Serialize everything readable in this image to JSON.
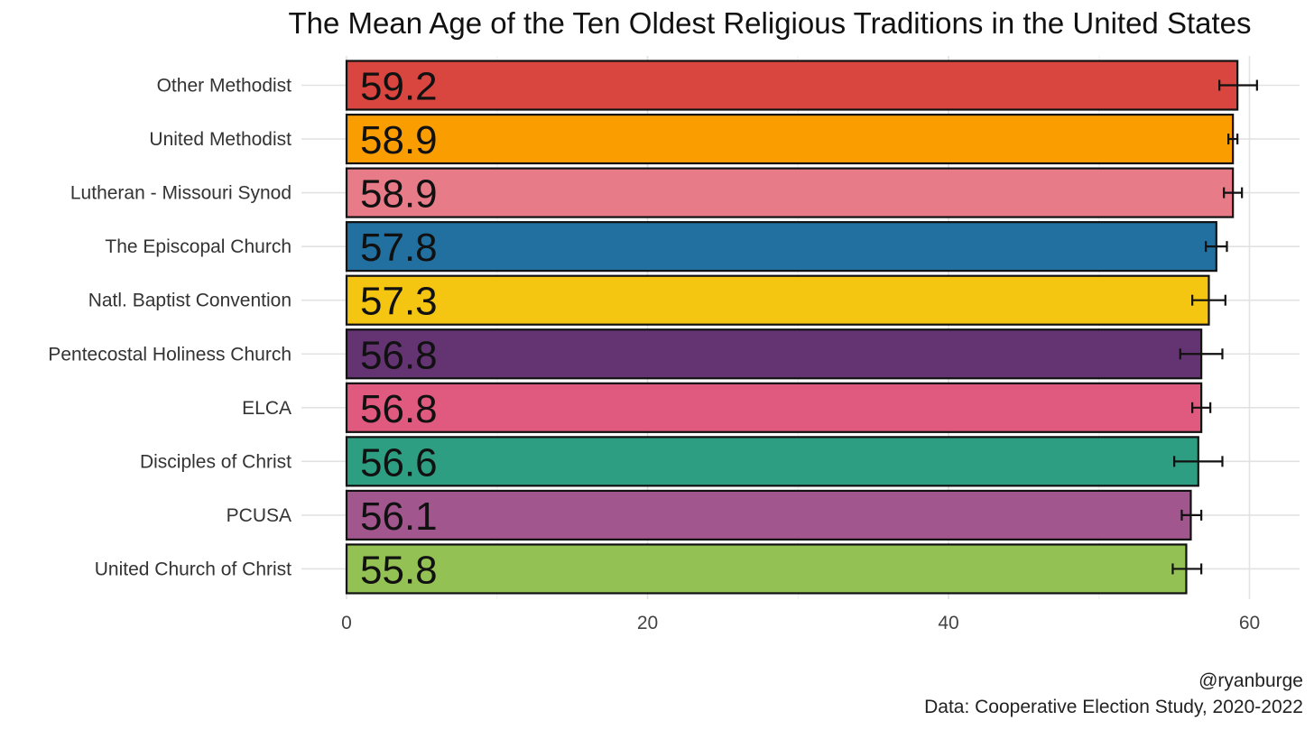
{
  "chart_data": {
    "type": "bar",
    "orientation": "horizontal",
    "title": "The Mean Age of the Ten Oldest Religious Traditions in the United States",
    "categories": [
      "Other Methodist",
      "United Methodist",
      "Lutheran - Missouri Synod",
      "The Episcopal Church",
      "Natl. Baptist Convention",
      "Pentecostal Holiness Church",
      "ELCA",
      "Disciples of Christ",
      "PCUSA",
      "United Church of Christ"
    ],
    "values": [
      59.2,
      58.9,
      58.9,
      57.8,
      57.3,
      56.8,
      56.8,
      56.6,
      56.1,
      55.8
    ],
    "value_labels": [
      "59.2",
      "58.9",
      "58.9",
      "57.8",
      "57.3",
      "56.8",
      "56.8",
      "56.6",
      "56.1",
      "55.8"
    ],
    "error_low": [
      58.0,
      58.6,
      58.3,
      57.1,
      56.2,
      55.4,
      56.2,
      55.0,
      55.5,
      54.9
    ],
    "error_high": [
      60.5,
      59.2,
      59.5,
      58.5,
      58.4,
      58.2,
      57.4,
      58.2,
      56.8,
      56.8
    ],
    "colors": [
      "#d9453f",
      "#fa9d00",
      "#e77b88",
      "#21709f",
      "#f4c511",
      "#633372",
      "#df5a7e",
      "#2e9e82",
      "#a1578e",
      "#94c153"
    ],
    "xlim": [
      0,
      62
    ],
    "x_ticks": [
      0,
      20,
      40,
      60
    ],
    "x_tick_labels": [
      "0",
      "20",
      "40",
      "60"
    ],
    "xlabel": "",
    "ylabel": "",
    "grid": true,
    "legend": "none",
    "caption_lines": [
      "@ryanburge",
      "Data: Cooperative Election Study, 2020-2022"
    ]
  }
}
